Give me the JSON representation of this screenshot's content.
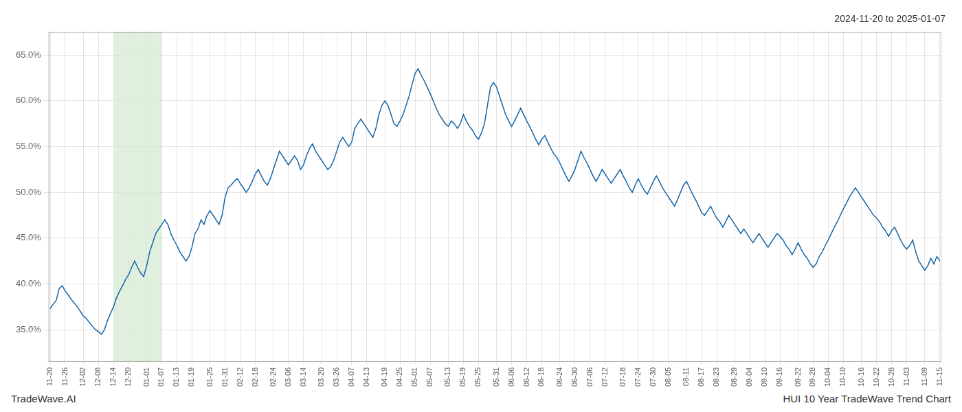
{
  "chart_data": {
    "type": "line",
    "title": "2024-11-20 to 2025-01-07",
    "annotations": [
      "TradeWave.AI",
      "HUI 10 Year TradeWave Trend Chart"
    ],
    "color": "#1565a8",
    "grid": true,
    "shade": {
      "start": "12-14",
      "end": "01-07",
      "color": "#d4e8d0"
    },
    "ylim": [
      31.5,
      67.5
    ],
    "yticks": [
      {
        "value": 35.0,
        "label": "35.0%"
      },
      {
        "value": 40.0,
        "label": "40.0%"
      },
      {
        "value": 45.0,
        "label": "45.0%"
      },
      {
        "value": 50.0,
        "label": "50.0%"
      },
      {
        "value": 55.0,
        "label": "55.0%"
      },
      {
        "value": 60.0,
        "label": "60.0%"
      },
      {
        "value": 65.0,
        "label": "65.0%"
      }
    ],
    "categories": [
      "11-20",
      null,
      null,
      null,
      null,
      "11-26",
      null,
      null,
      null,
      null,
      null,
      "12-02",
      null,
      null,
      null,
      null,
      "12-08",
      null,
      null,
      null,
      null,
      "12-14",
      null,
      null,
      null,
      null,
      "12-20",
      null,
      null,
      null,
      null,
      null,
      "01-01",
      null,
      null,
      null,
      null,
      "01-07",
      null,
      null,
      null,
      null,
      "01-13",
      null,
      null,
      null,
      null,
      "01-19",
      null,
      null,
      null,
      null,
      null,
      "01-25",
      null,
      null,
      null,
      null,
      "01-31",
      null,
      null,
      null,
      null,
      "02-12",
      null,
      null,
      null,
      null,
      "02-18",
      null,
      null,
      null,
      null,
      null,
      "02-24",
      null,
      null,
      null,
      null,
      "03-06",
      null,
      null,
      null,
      null,
      "03-14",
      null,
      null,
      null,
      null,
      null,
      "03-20",
      null,
      null,
      null,
      null,
      "03-26",
      null,
      null,
      null,
      null,
      "04-07",
      null,
      null,
      null,
      null,
      "04-13",
      null,
      null,
      null,
      null,
      null,
      "04-19",
      null,
      null,
      null,
      null,
      "04-25",
      null,
      null,
      null,
      null,
      "05-01",
      null,
      null,
      null,
      null,
      "05-07",
      null,
      null,
      null,
      null,
      null,
      "05-13",
      null,
      null,
      null,
      null,
      "05-19",
      null,
      null,
      null,
      null,
      "05-25",
      null,
      null,
      null,
      null,
      null,
      "05-31",
      null,
      null,
      null,
      null,
      "06-06",
      null,
      null,
      null,
      null,
      "06-12",
      null,
      null,
      null,
      null,
      "06-18",
      null,
      null,
      null,
      null,
      null,
      "06-24",
      null,
      null,
      null,
      null,
      "06-30",
      null,
      null,
      null,
      null,
      "07-06",
      null,
      null,
      null,
      null,
      "07-12",
      null,
      null,
      null,
      null,
      null,
      "07-18",
      null,
      null,
      null,
      null,
      "07-24",
      null,
      null,
      null,
      null,
      "07-30",
      null,
      null,
      null,
      null,
      "08-05",
      null,
      null,
      null,
      null,
      null,
      "08-11",
      null,
      null,
      null,
      null,
      "08-17",
      null,
      null,
      null,
      null,
      "08-23",
      null,
      null,
      null,
      null,
      null,
      "08-29",
      null,
      null,
      null,
      null,
      "09-04",
      null,
      null,
      null,
      null,
      "09-10",
      null,
      null,
      null,
      null,
      "09-16",
      null,
      null,
      null,
      null,
      null,
      "09-22",
      null,
      null,
      null,
      null,
      "09-28",
      null,
      null,
      null,
      null,
      "10-04",
      null,
      null,
      null,
      null,
      "10-10",
      null,
      null,
      null,
      null,
      null,
      "10-16",
      null,
      null,
      null,
      null,
      "10-22",
      null,
      null,
      null,
      null,
      "10-28",
      null,
      null,
      null,
      null,
      "11-03",
      null,
      null,
      null,
      null,
      null,
      "11-09",
      null,
      null,
      null,
      null,
      "11-15"
    ],
    "values": [
      37.3,
      37.8,
      38.2,
      39.5,
      39.8,
      39.2,
      38.8,
      38.3,
      37.9,
      37.5,
      37.0,
      36.5,
      36.2,
      35.8,
      35.4,
      35.0,
      34.8,
      34.5,
      35.0,
      36.0,
      36.8,
      37.5,
      38.5,
      39.2,
      39.8,
      40.5,
      41.0,
      41.8,
      42.5,
      41.8,
      41.2,
      40.8,
      42.0,
      43.5,
      44.5,
      45.5,
      46.0,
      46.5,
      47.0,
      46.5,
      45.5,
      44.8,
      44.2,
      43.5,
      43.0,
      42.5,
      43.0,
      44.0,
      45.5,
      46.0,
      47.0,
      46.5,
      47.5,
      48.0,
      47.5,
      47.0,
      46.5,
      47.5,
      49.5,
      50.5,
      50.8,
      51.2,
      51.5,
      51.0,
      50.5,
      50.0,
      50.5,
      51.2,
      52.0,
      52.5,
      51.8,
      51.2,
      50.8,
      51.5,
      52.5,
      53.5,
      54.5,
      54.0,
      53.5,
      53.0,
      53.5,
      54.0,
      53.5,
      52.5,
      53.0,
      54.0,
      54.8,
      55.3,
      54.5,
      54.0,
      53.5,
      53.0,
      52.5,
      52.8,
      53.5,
      54.5,
      55.5,
      56.0,
      55.5,
      55.0,
      55.5,
      57.0,
      57.5,
      58.0,
      57.5,
      57.0,
      56.5,
      56.0,
      57.0,
      58.5,
      59.5,
      60.0,
      59.5,
      58.5,
      57.5,
      57.2,
      57.8,
      58.5,
      59.5,
      60.5,
      61.8,
      63.0,
      63.5,
      62.8,
      62.2,
      61.5,
      60.8,
      60.0,
      59.2,
      58.5,
      58.0,
      57.5,
      57.2,
      57.8,
      57.5,
      57.0,
      57.5,
      58.5,
      57.8,
      57.2,
      56.8,
      56.2,
      55.8,
      56.5,
      57.5,
      59.5,
      61.5,
      62.0,
      61.5,
      60.5,
      59.5,
      58.5,
      57.8,
      57.2,
      57.8,
      58.5,
      59.2,
      58.5,
      57.8,
      57.2,
      56.5,
      55.8,
      55.2,
      55.8,
      56.2,
      55.5,
      54.8,
      54.2,
      53.8,
      53.2,
      52.5,
      51.8,
      51.2,
      51.8,
      52.5,
      53.5,
      54.5,
      53.8,
      53.2,
      52.5,
      51.8,
      51.2,
      51.8,
      52.5,
      52.0,
      51.5,
      51.0,
      51.5,
      52.0,
      52.5,
      51.8,
      51.2,
      50.5,
      50.0,
      50.8,
      51.5,
      50.8,
      50.2,
      49.8,
      50.5,
      51.2,
      51.8,
      51.2,
      50.5,
      50.0,
      49.5,
      49.0,
      48.5,
      49.2,
      50.0,
      50.8,
      51.2,
      50.5,
      49.8,
      49.2,
      48.5,
      47.8,
      47.5,
      48.0,
      48.5,
      47.8,
      47.2,
      46.8,
      46.2,
      46.8,
      47.5,
      47.0,
      46.5,
      46.0,
      45.5,
      46.0,
      45.5,
      45.0,
      44.5,
      45.0,
      45.5,
      45.0,
      44.5,
      44.0,
      44.5,
      45.0,
      45.5,
      45.2,
      44.8,
      44.2,
      43.8,
      43.2,
      43.8,
      44.5,
      43.8,
      43.2,
      42.8,
      42.2,
      41.8,
      42.2,
      43.0,
      43.5,
      44.2,
      44.8,
      45.5,
      46.2,
      46.8,
      47.5,
      48.2,
      48.8,
      49.5,
      50.0,
      50.5,
      50.0,
      49.5,
      49.0,
      48.5,
      48.0,
      47.5,
      47.2,
      46.8,
      46.2,
      45.8,
      45.2,
      45.8,
      46.2,
      45.5,
      44.8,
      44.2,
      43.8,
      44.2,
      44.8,
      43.5,
      42.5,
      42.0,
      41.5,
      42.0,
      42.8,
      42.2,
      43.0,
      42.5
    ]
  }
}
